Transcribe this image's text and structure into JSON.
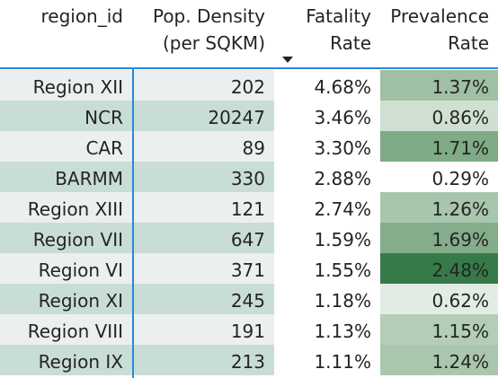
{
  "table": {
    "columns": [
      {
        "key": "region_id",
        "label": "region_id"
      },
      {
        "key": "pop_density",
        "label": "Pop. Density\n(per SQKM)"
      },
      {
        "key": "fatality_rate",
        "label": "Fatality\nRate"
      },
      {
        "key": "prevalence_rate",
        "label": "Prevalence\nRate"
      }
    ],
    "sorted_column": "fatality_rate",
    "sort_direction": "descending",
    "rows": [
      {
        "region_id": "Region XII",
        "pop_density": "202",
        "fatality_rate": "4.68%",
        "prevalence_rate": "1.37%",
        "prevalence_color": "#9fc0a3"
      },
      {
        "region_id": "NCR",
        "pop_density": "20247",
        "fatality_rate": "3.46%",
        "prevalence_rate": "0.86%",
        "prevalence_color": "#cfe0d2"
      },
      {
        "region_id": "CAR",
        "pop_density": "89",
        "fatality_rate": "3.30%",
        "prevalence_rate": "1.71%",
        "prevalence_color": "#7fab87"
      },
      {
        "region_id": "BARMM",
        "pop_density": "330",
        "fatality_rate": "2.88%",
        "prevalence_rate": "0.29%",
        "prevalence_color": "#ffffff"
      },
      {
        "region_id": "Region XIII",
        "pop_density": "121",
        "fatality_rate": "2.74%",
        "prevalence_rate": "1.26%",
        "prevalence_color": "#a8c6ac"
      },
      {
        "region_id": "Region VII",
        "pop_density": "647",
        "fatality_rate": "1.59%",
        "prevalence_rate": "1.69%",
        "prevalence_color": "#84ae8b"
      },
      {
        "region_id": "Region VI",
        "pop_density": "371",
        "fatality_rate": "1.55%",
        "prevalence_rate": "2.48%",
        "prevalence_color": "#357a48"
      },
      {
        "region_id": "Region XI",
        "pop_density": "245",
        "fatality_rate": "1.18%",
        "prevalence_rate": "0.62%",
        "prevalence_color": "#e2ece4"
      },
      {
        "region_id": "Region VIII",
        "pop_density": "191",
        "fatality_rate": "1.13%",
        "prevalence_rate": "1.15%",
        "prevalence_color": "#b3cdb6"
      },
      {
        "region_id": "Region IX",
        "pop_density": "213",
        "fatality_rate": "1.11%",
        "prevalence_rate": "1.24%",
        "prevalence_color": "#aac7ae"
      }
    ]
  },
  "colors": {
    "accent_divider": "#2b88d8",
    "band_light": "#eceff0",
    "band_dark": "#c9ddd7"
  },
  "icons": {
    "sort": "sort-descending-icon"
  }
}
